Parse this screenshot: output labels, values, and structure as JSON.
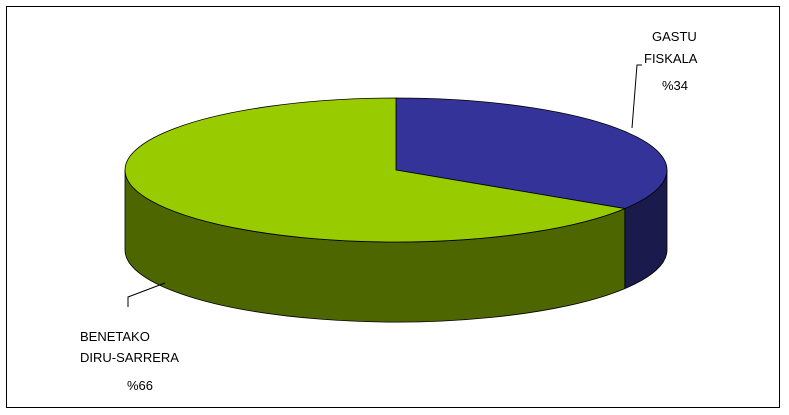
{
  "chart_data": {
    "type": "pie",
    "style": "3d",
    "title": "",
    "slices": [
      {
        "label_lines": [
          "GASTU",
          "FISKALA"
        ],
        "percent_label": "%34",
        "value": 34,
        "top_color": "#333399",
        "side_color": "#1a1a4d"
      },
      {
        "label_lines": [
          "BENETAKO",
          "DIRU-SARRERA"
        ],
        "percent_label": "%66",
        "value": 66,
        "top_color": "#99cc00",
        "side_color": "#4d6600"
      }
    ],
    "legend": "none",
    "border_color": "#000000"
  }
}
